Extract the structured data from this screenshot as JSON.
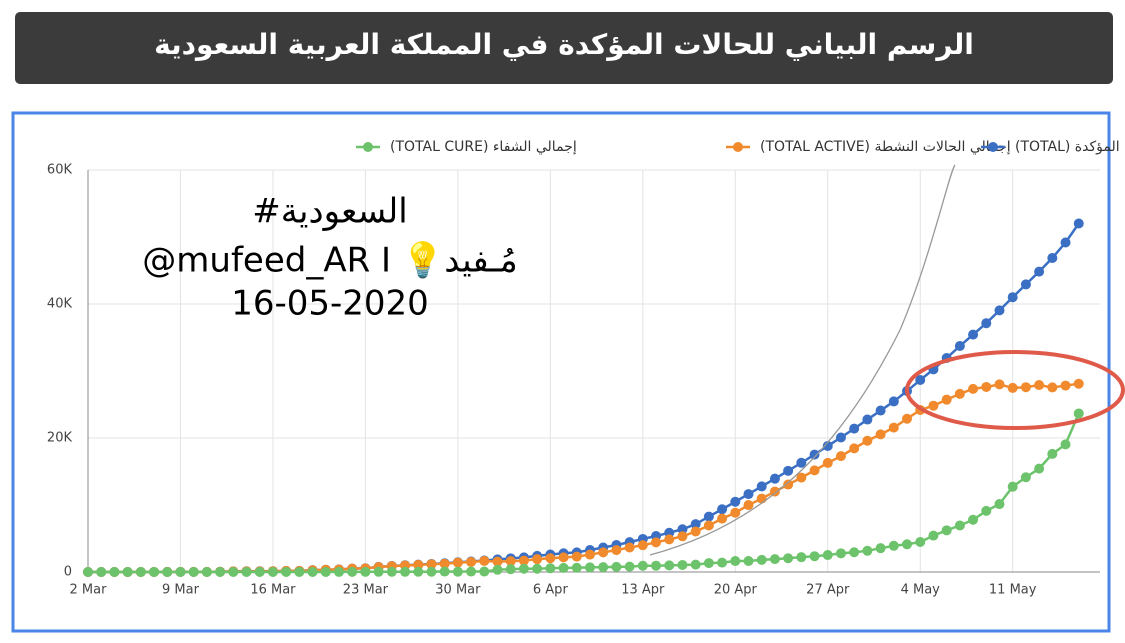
{
  "chart_data": {
    "type": "line",
    "header": "الرسم البياني للحالات المؤكدة في المملكة العربية السعودية",
    "annotations": [
      "#السعودية",
      "@mufeed_AR I 💡مُـفيد",
      "16-05-2020"
    ],
    "categories": [
      "2 Mar",
      null,
      null,
      null,
      null,
      null,
      null,
      "9 Mar",
      null,
      null,
      null,
      null,
      null,
      null,
      "16 Mar",
      null,
      null,
      null,
      null,
      null,
      null,
      "23 Mar",
      null,
      null,
      null,
      null,
      null,
      null,
      "30 Mar",
      null,
      null,
      null,
      null,
      null,
      null,
      "6 Apr",
      null,
      null,
      null,
      null,
      null,
      null,
      "13 Apr",
      null,
      null,
      null,
      null,
      null,
      null,
      "20 Apr",
      null,
      null,
      null,
      null,
      null,
      null,
      "27 Apr",
      null,
      null,
      null,
      null,
      null,
      null,
      "4 May",
      null,
      null,
      null,
      null,
      null,
      null,
      "11 May",
      null,
      null,
      null,
      null,
      null
    ],
    "series": [
      {
        "name": "إجمالي الحالات المؤكدة (TOTAL)",
        "color": "#3a6fc4",
        "values": [
          1,
          1,
          1,
          5,
          5,
          5,
          11,
          15,
          20,
          21,
          45,
          86,
          103,
          103,
          118,
          171,
          171,
          274,
          344,
          392,
          511,
          562,
          767,
          900,
          1012,
          1104,
          1203,
          1299,
          1453,
          1563,
          1720,
          1885,
          2039,
          2179,
          2402,
          2605,
          2795,
          2932,
          3287,
          3651,
          4033,
          4462,
          4934,
          5369,
          5862,
          6380,
          7142,
          8274,
          9362,
          10484,
          11631,
          12772,
          13930,
          15102,
          16299,
          17522,
          18811,
          20077,
          21402,
          22753,
          24097,
          25459,
          27011,
          28656,
          30251,
          31938,
          33731,
          35432,
          37136,
          39048,
          41014,
          42925,
          44830,
          46869,
          49176,
          52016
        ]
      },
      {
        "name": "إجمالي الحالات النشطة (TOTAL ACTIVE)",
        "color": "#f08a2c",
        "values": [
          1,
          1,
          1,
          5,
          5,
          5,
          11,
          15,
          19,
          20,
          44,
          85,
          102,
          102,
          116,
          165,
          165,
          266,
          336,
          382,
          495,
          543,
          739,
          871,
          979,
          1069,
          1166,
          1233,
          1404,
          1497,
          1654,
          1557,
          1619,
          1691,
          1914,
          2054,
          2180,
          2301,
          2602,
          2931,
          3272,
          3657,
          4003,
          4427,
          4872,
          5331,
          6044,
          6945,
          7964,
          8850,
          9991,
          10960,
          12005,
          13053,
          14084,
          15165,
          16280,
          17293,
          18452,
          19590,
          20542,
          21546,
          22877,
          24180,
          24820,
          25721,
          26590,
          27334,
          27616,
          28004,
          27477,
          27582,
          27902,
          27547,
          27825,
          28100
        ]
      },
      {
        "name": "إجمالي الشفاء (TOTAL CURE)",
        "color": "#6cc36b",
        "values": [
          0,
          0,
          0,
          0,
          0,
          0,
          0,
          0,
          1,
          1,
          1,
          1,
          1,
          1,
          2,
          6,
          6,
          8,
          8,
          10,
          16,
          19,
          28,
          29,
          33,
          35,
          37,
          66,
          49,
          66,
          66,
          328,
          420,
          488,
          488,
          551,
          615,
          631,
          685,
          720,
          761,
          805,
          931,
          942,
          990,
          1049,
          1098,
          1329,
          1398,
          1634,
          1640,
          1812,
          1925,
          2049,
          2215,
          2357,
          2531,
          2784,
          2950,
          3163,
          3555,
          3913,
          4134,
          4476,
          5431,
          6217,
          6941,
          7798,
          9120,
          10144,
          12737,
          14143,
          15428,
          17622,
          19051,
          23666
        ]
      }
    ],
    "ylim": [
      0,
      60000
    ],
    "yticks": [
      0,
      {
        "value": 20000,
        "label": "20K"
      },
      {
        "value": 40000,
        "label": "40K"
      },
      {
        "value": 60000,
        "label": "60K"
      }
    ],
    "grid": true
  }
}
